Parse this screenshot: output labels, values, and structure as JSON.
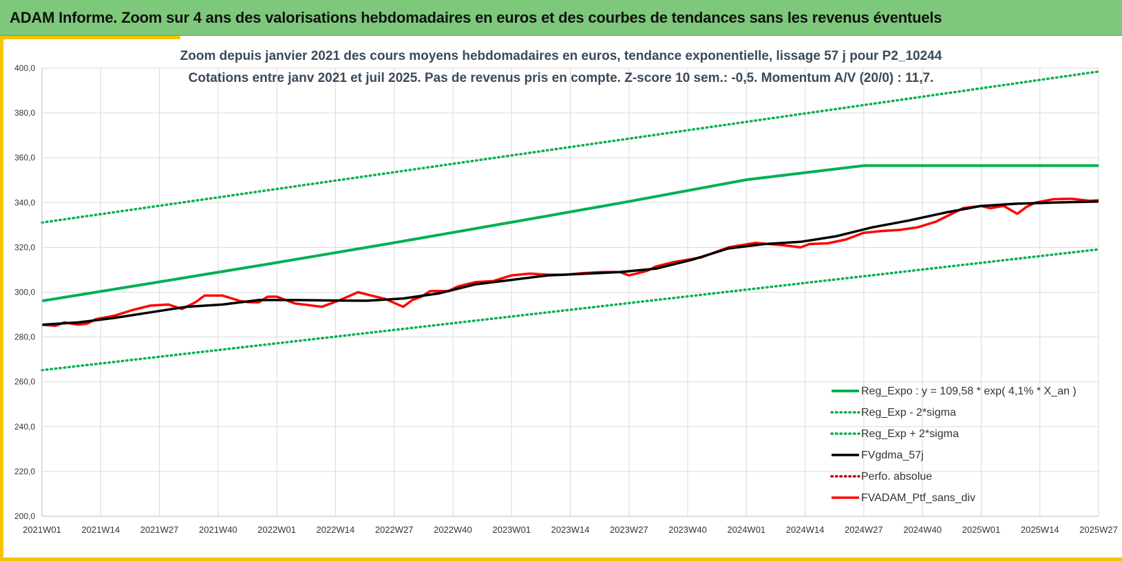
{
  "header": {
    "title": "ADAM Informe. Zoom sur 4 ans des valorisations hebdomadaires en euros et des courbes de tendances sans les revenus éventuels"
  },
  "chart_data": {
    "type": "line",
    "title": "Zoom depuis janvier 2021 des cours moyens hebdomadaires  en euros, tendance exponentielle, lissage 57 j pour P2_10244",
    "subtitle": "Cotations entre janv 2021 et juil 2025. Pas de revenus pris en compte. Z-score 10 sem.: -0,5. Momentum A/V (20/0) : 11,7.",
    "ylim": [
      200,
      400
    ],
    "ytick_labels": [
      "200,0",
      "220,0",
      "240,0",
      "260,0",
      "280,0",
      "300,0",
      "320,0",
      "340,0",
      "360,0",
      "380,0",
      "400,0"
    ],
    "ytick_values": [
      200,
      220,
      240,
      260,
      280,
      300,
      320,
      340,
      360,
      380,
      400
    ],
    "x_categories": [
      "2021W01",
      "2021W14",
      "2021W27",
      "2021W40",
      "2022W01",
      "2022W14",
      "2022W27",
      "2022W40",
      "2023W01",
      "2023W14",
      "2023W27",
      "2023W40",
      "2024W01",
      "2024W14",
      "2024W27",
      "2024W40",
      "2025W01",
      "2025W14",
      "2025W27"
    ],
    "x_weeks_per_category": 13,
    "grid": true,
    "legend_position": "bottom-right",
    "colors": {
      "trend": "#00b050",
      "band": "#00b050",
      "smooth": "#000000",
      "perf": "#c00000",
      "portfolio": "#ff0000",
      "grid": "#d9d9d9"
    },
    "series": [
      {
        "name": "Reg_Expo : y = 109,58 * exp( 4,1% *  X_an )",
        "style": "solid",
        "color": "#00b050",
        "x": [
          0,
          26,
          52,
          78,
          104,
          130,
          156,
          182,
          208,
          234
        ],
        "values": [
          296.1,
          304.6,
          313.2,
          322.1,
          331.2,
          340.5,
          350.2,
          356.5,
          356.5,
          356.5
        ]
      },
      {
        "name": "Reg_Exp - 2*sigma",
        "style": "dotted",
        "color": "#00b050",
        "x": [
          0,
          234
        ],
        "values": [
          265.2,
          319.1
        ]
      },
      {
        "name": "Reg_Exp + 2*sigma",
        "style": "dotted",
        "color": "#00b050",
        "x": [
          0,
          234
        ],
        "values": [
          331.1,
          398.5
        ]
      },
      {
        "name": "FVgdma_57j",
        "style": "solid",
        "color": "#000000",
        "x": [
          0,
          8,
          16,
          24,
          32,
          40,
          48,
          56,
          64,
          72,
          80,
          88,
          96,
          104,
          112,
          120,
          128,
          136,
          144,
          152,
          160,
          168,
          176,
          184,
          192,
          200,
          208,
          216,
          224,
          234
        ],
        "values": [
          285.5,
          286.5,
          288.5,
          291,
          293.5,
          294.5,
          296.5,
          296.5,
          296.3,
          296.2,
          297.2,
          299.5,
          303.5,
          305.5,
          307.5,
          308.2,
          309,
          310.5,
          314.5,
          319.5,
          321.5,
          322.5,
          325,
          329,
          332,
          335.5,
          338.5,
          339.5,
          340,
          340.5
        ]
      },
      {
        "name": "Perfo. absolue",
        "style": "dotted",
        "color": "#c00000",
        "x": [],
        "values": []
      },
      {
        "name": "FVADAM_Ptf_sans_div",
        "style": "solid",
        "color": "#ff0000",
        "x": [
          0,
          3,
          5,
          8,
          10,
          12,
          16,
          20,
          24,
          28,
          31,
          34,
          36,
          40,
          44,
          46,
          48,
          50,
          52,
          56,
          62,
          66,
          70,
          72,
          76,
          80,
          82,
          84,
          86,
          90,
          92,
          94,
          96,
          100,
          104,
          108,
          112,
          116,
          120,
          124,
          128,
          130,
          134,
          136,
          140,
          146,
          152,
          158,
          164,
          168,
          170,
          174,
          178,
          182,
          186,
          190,
          194,
          198,
          204,
          208,
          210,
          213,
          216,
          218,
          220,
          224,
          228,
          232,
          234
        ],
        "values": [
          285.5,
          285,
          286.5,
          285.5,
          286,
          288,
          289.5,
          292,
          294,
          294.5,
          292.5,
          295.5,
          298.5,
          298.5,
          296,
          295.5,
          295.5,
          298,
          298,
          295,
          293.5,
          296.5,
          300,
          299,
          297,
          293.5,
          296.5,
          298,
          300.5,
          300.5,
          302.5,
          303.5,
          304.5,
          305,
          307.5,
          308.3,
          307.8,
          307.8,
          308.5,
          309,
          309,
          307.5,
          309.5,
          311.5,
          313.5,
          315.5,
          320,
          322,
          321,
          320,
          321.5,
          321.8,
          323.5,
          326.5,
          327.3,
          327.8,
          329,
          331.5,
          337.5,
          338.5,
          337.5,
          338.5,
          335,
          338,
          340,
          341.5,
          341.7,
          340.8,
          341
        ]
      }
    ]
  }
}
